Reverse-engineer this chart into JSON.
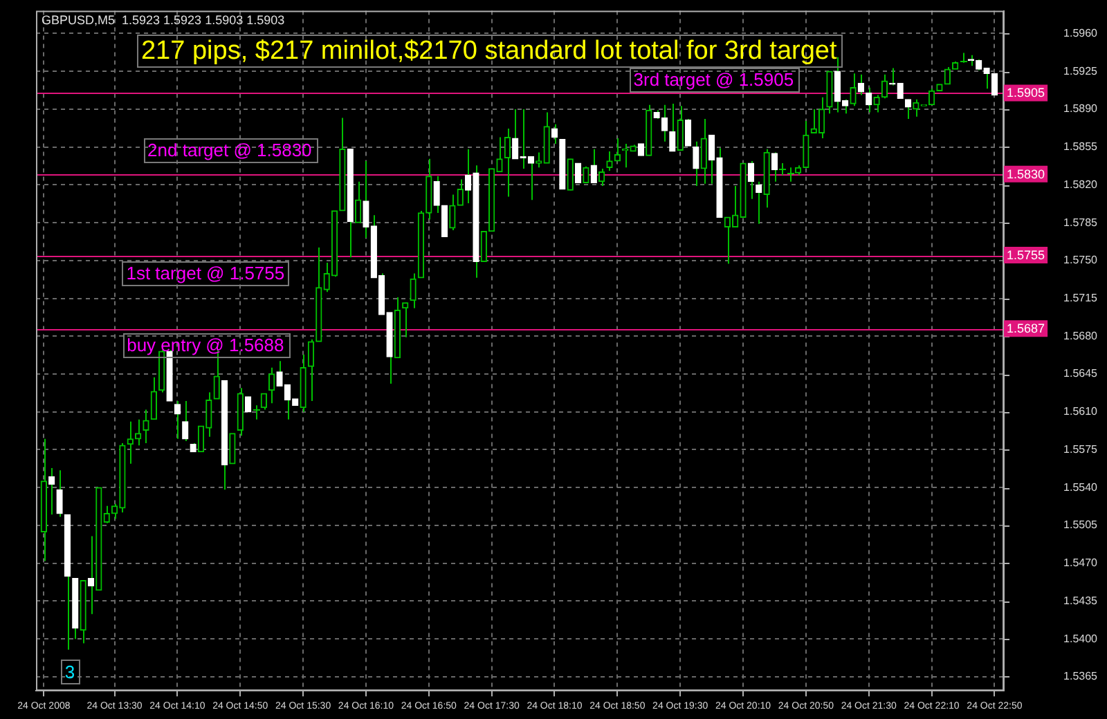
{
  "chart_data": {
    "type": "candlestick",
    "title": "GBPUSD,M5  1.5923 1.5923 1.5903 1.5903",
    "color": "#00c000",
    "colors": [
      "#00c000",
      "#ffffff",
      "#ffffff",
      "#ffffff",
      "#ffffff",
      "#00c000",
      "#ffffff",
      "#00c000",
      "#00c000",
      "#00c000",
      "#00c000",
      "#00c000",
      "#00c000",
      "#00c000",
      "#00c000",
      "#00c000",
      "#ffffff",
      "#ffffff",
      "#ffffff",
      "#ffffff",
      "#00c000",
      "#00c000",
      "#00c000",
      "#ffffff",
      "#00c000",
      "#00c000",
      "#ffffff",
      "#00c000",
      "#00c000",
      "#00c000",
      "#ffffff",
      "#ffffff",
      "#ffffff",
      "#00c000",
      "#00c000",
      "#00c000",
      "#00c000",
      "#00c000",
      "#00c000",
      "#ffffff",
      "#00c000",
      "#ffffff",
      "#ffffff",
      "#ffffff",
      "#ffffff",
      "#00c000",
      "#00c000",
      "#00c000",
      "#00c000",
      "#00c000",
      "#ffffff",
      "#ffffff",
      "#00c000",
      "#00c000",
      "#ffffff",
      "#ffffff",
      "#00c000",
      "#00c000",
      "#00c000",
      "#00c000",
      "#ffffff",
      "#ffffff",
      "#ffffff",
      "#00c000",
      "#00c000",
      "#ffffff",
      "#ffffff",
      "#00c000",
      "#ffffff",
      "#00c000",
      "#ffffff",
      "#00c000",
      "#00c000",
      "#00c000",
      "#00c000",
      "#00c000",
      "#ffffff",
      "#00c000",
      "#ffffff",
      "#ffffff",
      "#ffffff",
      "#00c000",
      "#ffffff",
      "#ffffff",
      "#00c000",
      "#ffffff",
      "#ffffff",
      "#00c000",
      "#00c000",
      "#00c000",
      "#ffffff",
      "#ffffff",
      "#00c000",
      "#ffffff",
      "#00c000",
      "#00c000",
      "#00c000",
      "#00c000",
      "#00c000",
      "#00c000",
      "#00c000",
      "#ffffff",
      "#ffffff",
      "#00c000",
      "#ffffff",
      "#ffffff",
      "#00c000",
      "#00c000",
      "#ffffff",
      "#ffffff",
      "#ffffff",
      "#00c000",
      "#00c000",
      "#00c000",
      "#00c000",
      "#00c000",
      "#00c000",
      "#00c000",
      "#ffffff",
      "#ffffff",
      "#ffffff",
      "#ffffff"
    ],
    "x": [
      "2008-10-24T12:45",
      "2008-10-24T12:50",
      "2008-10-24T12:55",
      "2008-10-24T13:00",
      "2008-10-24T13:05",
      "2008-10-24T13:10",
      "2008-10-24T13:15",
      "2008-10-24T13:20",
      "2008-10-24T13:25",
      "2008-10-24T13:30",
      "2008-10-24T13:35",
      "2008-10-24T13:40",
      "2008-10-24T13:45",
      "2008-10-24T13:50",
      "2008-10-24T13:55",
      "2008-10-24T14:00",
      "2008-10-24T14:05",
      "2008-10-24T14:10",
      "2008-10-24T14:15",
      "2008-10-24T14:20",
      "2008-10-24T14:25",
      "2008-10-24T14:30",
      "2008-10-24T14:35",
      "2008-10-24T14:40",
      "2008-10-24T14:45",
      "2008-10-24T14:50",
      "2008-10-24T14:55",
      "2008-10-24T15:00",
      "2008-10-24T15:05",
      "2008-10-24T15:10",
      "2008-10-24T15:15",
      "2008-10-24T15:20",
      "2008-10-24T15:25",
      "2008-10-24T15:30",
      "2008-10-24T15:35",
      "2008-10-24T15:40",
      "2008-10-24T15:45",
      "2008-10-24T15:50",
      "2008-10-24T15:55",
      "2008-10-24T16:00",
      "2008-10-24T16:05",
      "2008-10-24T16:10",
      "2008-10-24T16:15",
      "2008-10-24T16:20",
      "2008-10-24T16:25",
      "2008-10-24T16:30",
      "2008-10-24T16:35",
      "2008-10-24T16:40",
      "2008-10-24T16:45",
      "2008-10-24T16:50",
      "2008-10-24T16:55",
      "2008-10-24T17:00",
      "2008-10-24T17:05",
      "2008-10-24T17:10",
      "2008-10-24T17:15",
      "2008-10-24T17:20",
      "2008-10-24T17:25",
      "2008-10-24T17:30",
      "2008-10-24T17:35",
      "2008-10-24T17:40",
      "2008-10-24T17:45",
      "2008-10-24T17:50",
      "2008-10-24T17:55",
      "2008-10-24T18:00",
      "2008-10-24T18:05",
      "2008-10-24T18:10",
      "2008-10-24T18:15",
      "2008-10-24T18:20",
      "2008-10-24T18:25",
      "2008-10-24T18:30",
      "2008-10-24T18:35",
      "2008-10-24T18:40",
      "2008-10-24T18:45",
      "2008-10-24T18:50",
      "2008-10-24T18:55",
      "2008-10-24T19:00",
      "2008-10-24T19:05",
      "2008-10-24T19:10",
      "2008-10-24T19:15",
      "2008-10-24T19:20",
      "2008-10-24T19:25",
      "2008-10-24T19:30",
      "2008-10-24T19:35",
      "2008-10-24T19:40",
      "2008-10-24T19:45",
      "2008-10-24T19:50",
      "2008-10-24T19:55",
      "2008-10-24T20:00",
      "2008-10-24T20:05",
      "2008-10-24T20:10",
      "2008-10-24T20:15",
      "2008-10-24T20:20",
      "2008-10-24T20:25",
      "2008-10-24T20:30",
      "2008-10-24T20:35",
      "2008-10-24T20:40",
      "2008-10-24T20:45",
      "2008-10-24T20:50",
      "2008-10-24T20:55",
      "2008-10-24T21:00",
      "2008-10-24T21:05",
      "2008-10-24T21:10",
      "2008-10-24T21:15",
      "2008-10-24T21:20",
      "2008-10-24T21:25",
      "2008-10-24T21:30",
      "2008-10-24T21:35",
      "2008-10-24T21:40",
      "2008-10-24T21:45",
      "2008-10-24T21:50",
      "2008-10-24T21:55",
      "2008-10-24T22:00",
      "2008-10-24T22:05",
      "2008-10-24T22:10",
      "2008-10-24T22:15",
      "2008-10-24T22:20",
      "2008-10-24T22:25",
      "2008-10-24T22:30",
      "2008-10-24T22:35",
      "2008-10-24T22:40",
      "2008-10-24T22:45",
      "2008-10-24T22:50"
    ],
    "ohlc": [
      [
        1.5499,
        1.5585,
        1.5472,
        1.5546
      ],
      [
        1.555,
        1.5558,
        1.5515,
        1.5543
      ],
      [
        1.5538,
        1.5556,
        1.5513,
        1.5516
      ],
      [
        1.5515,
        1.5515,
        1.539,
        1.5458
      ],
      [
        1.5456,
        1.5456,
        1.54,
        1.541
      ],
      [
        1.5408,
        1.5454,
        1.5396,
        1.5454
      ],
      [
        1.5456,
        1.5495,
        1.5423,
        1.5449
      ],
      [
        1.5445,
        1.554,
        1.5445,
        1.554
      ],
      [
        1.5508,
        1.5523,
        1.5507,
        1.5516
      ],
      [
        1.5516,
        1.5525,
        1.5511,
        1.5523
      ],
      [
        1.5521,
        1.5581,
        1.5517,
        1.5579
      ],
      [
        1.558,
        1.5601,
        1.5562,
        1.5585
      ],
      [
        1.5585,
        1.5603,
        1.5579,
        1.559
      ],
      [
        1.5593,
        1.5612,
        1.5581,
        1.5602
      ],
      [
        1.5603,
        1.5642,
        1.5603,
        1.5629
      ],
      [
        1.563,
        1.5667,
        1.5628,
        1.5666
      ],
      [
        1.5666,
        1.5667,
        1.562,
        1.562
      ],
      [
        1.5617,
        1.562,
        1.5585,
        1.5608
      ],
      [
        1.5601,
        1.562,
        1.5583,
        1.5585
      ],
      [
        1.558,
        1.5581,
        1.5573,
        1.5573
      ],
      [
        1.5573,
        1.5597,
        1.5573,
        1.5597
      ],
      [
        1.5595,
        1.5628,
        1.5587,
        1.5621
      ],
      [
        1.5622,
        1.5667,
        1.5622,
        1.5643
      ],
      [
        1.5639,
        1.5639,
        1.5538,
        1.5561
      ],
      [
        1.5562,
        1.559,
        1.5562,
        1.559
      ],
      [
        1.5593,
        1.5632,
        1.5588,
        1.5627
      ],
      [
        1.5624,
        1.5624,
        1.561,
        1.561
      ],
      [
        1.5612,
        1.5616,
        1.5603,
        1.5612
      ],
      [
        1.5614,
        1.5627,
        1.5612,
        1.5627
      ],
      [
        1.563,
        1.5651,
        1.5618,
        1.5645
      ],
      [
        1.5647,
        1.5657,
        1.5634,
        1.5634
      ],
      [
        1.5635,
        1.5635,
        1.5603,
        1.5621
      ],
      [
        1.5622,
        1.5622,
        1.5616,
        1.5616
      ],
      [
        1.5614,
        1.5663,
        1.561,
        1.5651
      ],
      [
        1.5652,
        1.5677,
        1.562,
        1.5675
      ],
      [
        1.5675,
        1.5762,
        1.5675,
        1.5725
      ],
      [
        1.5723,
        1.5748,
        1.5721,
        1.5738
      ],
      [
        1.5736,
        1.5796,
        1.5735,
        1.5796
      ],
      [
        1.5796,
        1.5882,
        1.5796,
        1.5853
      ],
      [
        1.5853,
        1.5853,
        1.5753,
        1.5786
      ],
      [
        1.5785,
        1.5823,
        1.5785,
        1.5806
      ],
      [
        1.5805,
        1.5842,
        1.5771,
        1.5781
      ],
      [
        1.5782,
        1.5792,
        1.5734,
        1.5734
      ],
      [
        1.5736,
        1.5738,
        1.57,
        1.57
      ],
      [
        1.5702,
        1.5702,
        1.5636,
        1.5661
      ],
      [
        1.566,
        1.5716,
        1.566,
        1.5704
      ],
      [
        1.5706,
        1.5711,
        1.5679,
        1.5711
      ],
      [
        1.5713,
        1.5738,
        1.5706,
        1.5733
      ],
      [
        1.5734,
        1.5796,
        1.5734,
        1.5794
      ],
      [
        1.5794,
        1.5844,
        1.5788,
        1.5828
      ],
      [
        1.5823,
        1.5828,
        1.5794,
        1.5801
      ],
      [
        1.5801,
        1.5801,
        1.5772,
        1.5772
      ],
      [
        1.578,
        1.5811,
        1.5778,
        1.5801
      ],
      [
        1.5801,
        1.5825,
        1.5801,
        1.5816
      ],
      [
        1.5829,
        1.5853,
        1.5803,
        1.5815
      ],
      [
        1.5831,
        1.5838,
        1.5734,
        1.5749
      ],
      [
        1.5749,
        1.5777,
        1.5749,
        1.5777
      ],
      [
        1.5777,
        1.5835,
        1.5777,
        1.5835
      ],
      [
        1.5832,
        1.5864,
        1.5832,
        1.5844
      ],
      [
        1.5845,
        1.5872,
        1.5809,
        1.5864
      ],
      [
        1.5863,
        1.589,
        1.5844,
        1.5844
      ],
      [
        1.5846,
        1.589,
        1.5835,
        1.5845
      ],
      [
        1.5846,
        1.5846,
        1.5806,
        1.584
      ],
      [
        1.584,
        1.585,
        1.5836,
        1.5842
      ],
      [
        1.584,
        1.5887,
        1.584,
        1.5874
      ],
      [
        1.5872,
        1.5876,
        1.5858,
        1.5864
      ],
      [
        1.5862,
        1.5862,
        1.5816,
        1.5816
      ],
      [
        1.5815,
        1.5844,
        1.5815,
        1.5844
      ],
      [
        1.584,
        1.584,
        1.5822,
        1.5822
      ],
      [
        1.5822,
        1.5837,
        1.5822,
        1.5836
      ],
      [
        1.5838,
        1.5853,
        1.5822,
        1.5822
      ],
      [
        1.5823,
        1.5835,
        1.5819,
        1.5832
      ],
      [
        1.5836,
        1.5851,
        1.5833,
        1.5842
      ],
      [
        1.5842,
        1.5863,
        1.5842,
        1.5848
      ],
      [
        1.5852,
        1.5858,
        1.5836,
        1.5853
      ],
      [
        1.5851,
        1.5857,
        1.5851,
        1.5856
      ],
      [
        1.5858,
        1.5858,
        1.5847,
        1.5847
      ],
      [
        1.5847,
        1.5894,
        1.5847,
        1.5889
      ],
      [
        1.5887,
        1.5889,
        1.5881,
        1.5882
      ],
      [
        1.5882,
        1.5894,
        1.586,
        1.587
      ],
      [
        1.5869,
        1.5895,
        1.5851,
        1.5851
      ],
      [
        1.5852,
        1.5893,
        1.5852,
        1.588
      ],
      [
        1.588,
        1.5881,
        1.5856,
        1.5856
      ],
      [
        1.5855,
        1.586,
        1.5819,
        1.5835
      ],
      [
        1.5835,
        1.5881,
        1.5821,
        1.5863
      ],
      [
        1.5866,
        1.5866,
        1.5821,
        1.5843
      ],
      [
        1.5845,
        1.5854,
        1.579,
        1.579
      ],
      [
        1.5781,
        1.579,
        1.5747,
        1.579
      ],
      [
        1.5781,
        1.5819,
        1.5781,
        1.5792
      ],
      [
        1.579,
        1.584,
        1.579,
        1.584
      ],
      [
        1.584,
        1.5842,
        1.5807,
        1.5823
      ],
      [
        1.582,
        1.5823,
        1.5784,
        1.5813
      ],
      [
        1.5811,
        1.5853,
        1.5799,
        1.585
      ],
      [
        1.5849,
        1.585,
        1.5823,
        1.5834
      ],
      [
        1.5835,
        1.584,
        1.5829,
        1.5835
      ],
      [
        1.5831,
        1.5836,
        1.5823,
        1.5831
      ],
      [
        1.5831,
        1.5838,
        1.5829,
        1.5836
      ],
      [
        1.5836,
        1.5879,
        1.5836,
        1.5866
      ],
      [
        1.5868,
        1.589,
        1.5868,
        1.5872
      ],
      [
        1.5868,
        1.5901,
        1.5863,
        1.589
      ],
      [
        1.5892,
        1.5925,
        1.5886,
        1.5925
      ],
      [
        1.5925,
        1.5938,
        1.5887,
        1.5897
      ],
      [
        1.5898,
        1.5899,
        1.5886,
        1.5893
      ],
      [
        1.5895,
        1.5923,
        1.5893,
        1.591
      ],
      [
        1.5914,
        1.5922,
        1.5903,
        1.5906
      ],
      [
        1.5905,
        1.591,
        1.5887,
        1.5894
      ],
      [
        1.5894,
        1.5903,
        1.5887,
        1.5901
      ],
      [
        1.5901,
        1.5922,
        1.59,
        1.5916
      ],
      [
        1.5914,
        1.5928,
        1.5912,
        1.5913
      ],
      [
        1.5914,
        1.5914,
        1.59,
        1.59
      ],
      [
        1.5899,
        1.5899,
        1.5881,
        1.5892
      ],
      [
        1.589,
        1.5899,
        1.5883,
        1.5896
      ],
      [
        1.5893,
        1.5894,
        1.5893,
        1.5894
      ],
      [
        1.5894,
        1.5909,
        1.5894,
        1.5907
      ],
      [
        1.5907,
        1.5913,
        1.5907,
        1.5913
      ],
      [
        1.5913,
        1.5929,
        1.5913,
        1.5927
      ],
      [
        1.5927,
        1.5934,
        1.5927,
        1.5933
      ],
      [
        1.5935,
        1.5942,
        1.5933,
        1.5935
      ],
      [
        1.5936,
        1.594,
        1.593,
        1.5935
      ],
      [
        1.5935,
        1.5936,
        1.5926,
        1.5927
      ],
      [
        1.5928,
        1.5928,
        1.5909,
        1.5923
      ],
      [
        1.5923,
        1.5923,
        1.5903,
        1.5903
      ]
    ],
    "xlim": [
      "2008-10-24T12:40",
      "2008-10-24T22:56"
    ],
    "xticks": [
      {
        "value": "2008-10-24T12:45",
        "label": "24 Oct 2008"
      },
      {
        "value": "2008-10-24T13:30",
        "label": "24 Oct 13:30"
      },
      {
        "value": "2008-10-24T14:10",
        "label": "24 Oct 14:10"
      },
      {
        "value": "2008-10-24T14:50",
        "label": "24 Oct 14:50"
      },
      {
        "value": "2008-10-24T15:30",
        "label": "24 Oct 15:30"
      },
      {
        "value": "2008-10-24T16:10",
        "label": "24 Oct 16:10"
      },
      {
        "value": "2008-10-24T16:50",
        "label": "24 Oct 16:50"
      },
      {
        "value": "2008-10-24T17:30",
        "label": "24 Oct 17:30"
      },
      {
        "value": "2008-10-24T18:10",
        "label": "24 Oct 18:10"
      },
      {
        "value": "2008-10-24T18:50",
        "label": "24 Oct 18:50"
      },
      {
        "value": "2008-10-24T19:30",
        "label": "24 Oct 19:30"
      },
      {
        "value": "2008-10-24T20:10",
        "label": "24 Oct 20:10"
      },
      {
        "value": "2008-10-24T20:50",
        "label": "24 Oct 20:50"
      },
      {
        "value": "2008-10-24T21:30",
        "label": "24 Oct 21:30"
      },
      {
        "value": "2008-10-24T22:10",
        "label": "24 Oct 22:10"
      },
      {
        "value": "2008-10-24T22:50",
        "label": "24 Oct 22:50"
      }
    ],
    "ylim": [
      1.5352,
      1.5981
    ],
    "yticks": [
      {
        "value": 1.5365,
        "label": "1.5365"
      },
      {
        "value": 1.54,
        "label": "1.5400"
      },
      {
        "value": 1.5435,
        "label": "1.5435"
      },
      {
        "value": 1.547,
        "label": "1.5470"
      },
      {
        "value": 1.5505,
        "label": "1.5505"
      },
      {
        "value": 1.554,
        "label": "1.5540"
      },
      {
        "value": 1.5575,
        "label": "1.5575"
      },
      {
        "value": 1.561,
        "label": "1.5610"
      },
      {
        "value": 1.5645,
        "label": "1.5645"
      },
      {
        "value": 1.568,
        "label": "1.5680"
      },
      {
        "value": 1.5715,
        "label": "1.5715"
      },
      {
        "value": 1.575,
        "label": "1.5750"
      },
      {
        "value": 1.5785,
        "label": "1.5785"
      },
      {
        "value": 1.582,
        "label": "1.5820"
      },
      {
        "value": 1.5855,
        "label": "1.5855"
      },
      {
        "value": 1.589,
        "label": "1.5890"
      },
      {
        "value": 1.5925,
        "label": "1.5925"
      },
      {
        "value": 1.596,
        "label": "1.5960"
      }
    ],
    "grid": true,
    "ref_lines": [
      {
        "axis": "y",
        "value": 1.5905,
        "label": "1.5905",
        "color": "#e0147c"
      },
      {
        "axis": "y",
        "value": 1.583,
        "label": "1.5830",
        "color": "#e0147c"
      },
      {
        "axis": "y",
        "value": 1.5755,
        "label": "1.5755",
        "color": "#e0147c"
      },
      {
        "axis": "y",
        "value": 1.5687,
        "label": "1.5687",
        "color": "#e0147c"
      }
    ],
    "annotations": [
      "217 pips, $217 minilot,$2170 standard lot total for 3rd target",
      "3rd target @ 1.5905",
      "2nd target @ 1.5830",
      "1st target @ 1.5755",
      "buy entry @ 1.5688",
      "3"
    ]
  }
}
